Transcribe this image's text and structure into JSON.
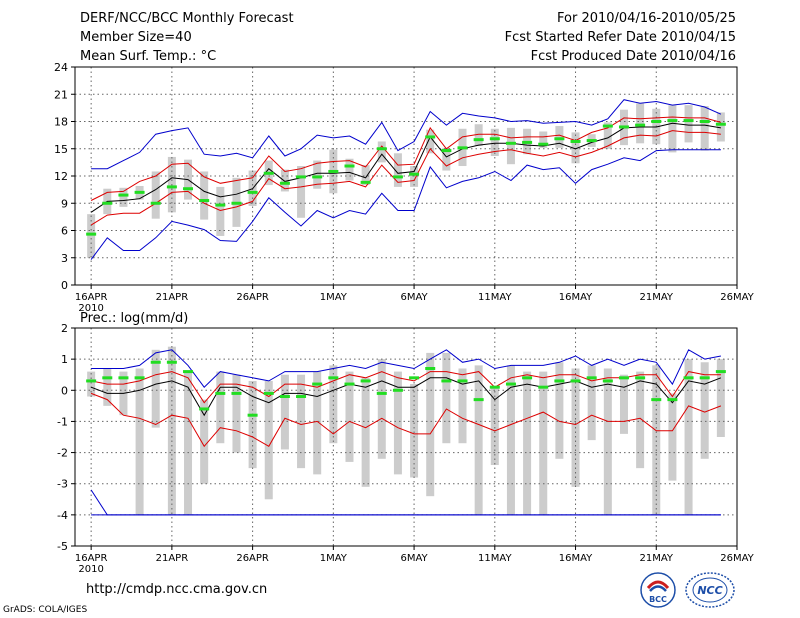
{
  "header": {
    "title": "DERF/NCC/BCC Monthly Forecast",
    "member_size": "Member Size=40",
    "variable1": "Mean Surf. Temp.: °C",
    "period": "For 2010/04/16-2010/05/25",
    "refer_date": "Fcst Started Refer Date 2010/04/15",
    "produced_date": "Fcst Produced Date 2010/04/16"
  },
  "footer": {
    "url": "http://cmdp.ncc.cma.gov.cn",
    "credit": "GrADS: COLA/IGES",
    "logo_bcc": "BCC",
    "logo_ncc": "NCC"
  },
  "colors": {
    "envelope": "#0000cc",
    "spread": "#dd0000",
    "mean": "#000000",
    "obs": "#22dd22",
    "box": "#cccccc"
  },
  "chart_data": [
    {
      "type": "line",
      "title": "Mean Surf. Temp.: °C",
      "x": [
        1,
        2,
        3,
        4,
        5,
        6,
        7,
        8,
        9,
        10,
        11,
        12,
        13,
        14,
        15,
        16,
        17,
        18,
        19,
        20,
        21,
        22,
        23,
        24,
        25,
        26,
        27,
        28,
        29,
        30,
        31,
        32,
        33,
        34,
        35,
        36,
        37,
        38,
        39,
        40
      ],
      "xlim": [
        0,
        41
      ],
      "ylim": [
        0,
        24
      ],
      "yticks": [
        0,
        3,
        6,
        9,
        12,
        15,
        18,
        21,
        24
      ],
      "xtick_positions": [
        1,
        6,
        11,
        16,
        21,
        26,
        31,
        36,
        41
      ],
      "xtick_labels": [
        "16APR",
        "21APR",
        "26APR",
        "1MAY",
        "6MAY",
        "11MAY",
        "16MAY",
        "21MAY",
        "26MAY"
      ],
      "year_label": "2010",
      "series": [
        {
          "name": "max",
          "values": [
            2.8,
            5.2,
            3.8,
            3.8,
            5.2,
            7,
            6.6,
            6.1,
            4.9,
            4.8,
            7,
            9.6,
            8,
            6.5,
            8.2,
            7.4,
            8.2,
            7.8,
            10.1,
            8.2,
            8.2,
            13,
            10.7,
            11.4,
            11.8,
            12.5,
            11.5,
            13.2,
            12.7,
            12.9,
            11.2,
            12.7,
            13.3,
            14,
            13.7,
            14.8,
            14.9,
            14.9,
            14.9,
            14.9
          ]
        },
        {
          "name": "min",
          "values": [
            12.8,
            12.8,
            13.7,
            14.6,
            16.6,
            17,
            17.3,
            14.4,
            14.2,
            14.5,
            14,
            16.4,
            14.2,
            15,
            16.5,
            16.2,
            16.4,
            15.5,
            17.9,
            14.8,
            15.8,
            19.1,
            17.6,
            18.9,
            18.6,
            18.4,
            18,
            18.1,
            17.8,
            17.9,
            18,
            17.6,
            18.3,
            20.4,
            20,
            20.2,
            19.8,
            20,
            19.6,
            18.8
          ]
        },
        {
          "name": "upper",
          "values": [
            9.3,
            10.2,
            10.3,
            11.4,
            12,
            13.3,
            13.4,
            11.9,
            11.2,
            11.5,
            11.8,
            14.2,
            12.5,
            12.8,
            13.4,
            13.6,
            13.7,
            13,
            15.3,
            13.2,
            13.3,
            17.3,
            15,
            16.3,
            16.6,
            16.6,
            16.2,
            16.3,
            16.3,
            16.5,
            15.9,
            16.8,
            17.3,
            18.4,
            18.3,
            18.4,
            18.5,
            18.4,
            18.4,
            17.9
          ]
        },
        {
          "name": "mean",
          "values": [
            8,
            9.2,
            9.3,
            9.5,
            10.5,
            11.8,
            11.6,
            10.3,
            9.7,
            10,
            10.6,
            12.8,
            11.4,
            11.8,
            12.3,
            12.3,
            12.4,
            11.8,
            14.4,
            12.3,
            12.5,
            16.3,
            14.1,
            15,
            15.4,
            15.6,
            15.6,
            15.4,
            15.3,
            15.6,
            15,
            15.7,
            16.2,
            17.3,
            17.4,
            17.4,
            17.8,
            17.6,
            17.6,
            17.3
          ]
        },
        {
          "name": "lower",
          "values": [
            6.6,
            7.7,
            7.9,
            7.9,
            9,
            10.2,
            10.3,
            9,
            8.2,
            8.6,
            9.2,
            11.7,
            10.6,
            10.8,
            11.1,
            11.2,
            11.4,
            10.8,
            13.2,
            11.3,
            11.5,
            15,
            13.1,
            14,
            14.4,
            14.7,
            14.9,
            14.5,
            14.2,
            14.6,
            14.1,
            14.6,
            15.3,
            16.2,
            16.5,
            16.4,
            17,
            16.8,
            16.8,
            16.6
          ]
        }
      ],
      "box_low": [
        3,
        7.8,
        8.6,
        9.4,
        7.3,
        8,
        9.4,
        7.2,
        5.4,
        6.4,
        8.7,
        11,
        10.3,
        7.4,
        10.6,
        10.1,
        11.5,
        11,
        13.5,
        10.8,
        10.8,
        14.5,
        12.6,
        13.1,
        15.3,
        14.2,
        13.3,
        14.4,
        15.1,
        15.1,
        13.4,
        15.2,
        15,
        15.4,
        15.6,
        15.5,
        14.6,
        15.7,
        14.8,
        15.8
      ],
      "box_high": [
        7.8,
        10.6,
        10.7,
        10.9,
        12.5,
        14.1,
        13.8,
        12.5,
        10.8,
        11.8,
        12.6,
        13.7,
        12.7,
        13.1,
        13.7,
        14.9,
        13.9,
        13.2,
        15.8,
        14.5,
        13.1,
        17.1,
        15.1,
        17.2,
        17.7,
        17.2,
        17.3,
        17.2,
        16.9,
        17.5,
        16.8,
        16.6,
        17.9,
        19.3,
        20,
        19.4,
        19.8,
        19.8,
        19.7,
        19
      ],
      "obs": [
        5.6,
        9,
        9.9,
        10.2,
        9,
        10.8,
        10.6,
        9.3,
        8.8,
        9,
        10.2,
        12.3,
        11.2,
        11.9,
        11.9,
        12.5,
        13.1,
        11.3,
        15,
        11.9,
        12.2,
        16.3,
        14.8,
        15.1,
        16,
        16.1,
        15.6,
        15.7,
        15.5,
        16.1,
        15.8,
        15.9,
        17.5,
        17.4,
        17.6,
        18,
        18.1,
        18.1,
        18,
        17.7
      ]
    },
    {
      "type": "line",
      "title": "Prec.: log(mm/d)",
      "x": [
        1,
        2,
        3,
        4,
        5,
        6,
        7,
        8,
        9,
        10,
        11,
        12,
        13,
        14,
        15,
        16,
        17,
        18,
        19,
        20,
        21,
        22,
        23,
        24,
        25,
        26,
        27,
        28,
        29,
        30,
        31,
        32,
        33,
        34,
        35,
        36,
        37,
        38,
        39,
        40
      ],
      "xlim": [
        0,
        41
      ],
      "ylim": [
        -5,
        2
      ],
      "yticks": [
        -5,
        -4,
        -3,
        -2,
        -1,
        0,
        1,
        2
      ],
      "xtick_positions": [
        1,
        6,
        11,
        16,
        21,
        26,
        31,
        36,
        41
      ],
      "xtick_labels": [
        "16APR",
        "21APR",
        "26APR",
        "1MAY",
        "6MAY",
        "11MAY",
        "16MAY",
        "21MAY",
        "26MAY"
      ],
      "year_label": "2010",
      "series": [
        {
          "name": "max",
          "values": [
            0.7,
            0.7,
            0.7,
            0.8,
            1.2,
            1.3,
            0.8,
            0.1,
            0.6,
            0.5,
            0.4,
            0.3,
            0.6,
            0.6,
            0.6,
            0.7,
            0.8,
            0.7,
            0.9,
            0.8,
            0.7,
            1,
            1.3,
            0.9,
            1,
            0.7,
            0.8,
            0.8,
            0.8,
            0.9,
            1.1,
            0.8,
            1,
            0.8,
            1,
            0.9,
            0.2,
            1.3,
            1,
            1.1
          ]
        },
        {
          "name": "min",
          "values": [
            -3.2,
            -4,
            -4,
            -4,
            -4,
            -4,
            -4,
            -4,
            -4,
            -4,
            -4,
            -4,
            -4,
            -4,
            -4,
            -4,
            -4,
            -4,
            -4,
            -4,
            -4,
            -4,
            -4,
            -4,
            -4,
            -4,
            -4,
            -4,
            -4,
            -4,
            -4,
            -4,
            -4,
            -4,
            -4,
            -4,
            -4,
            -4,
            -4,
            -4
          ]
        },
        {
          "name": "upper",
          "values": [
            0.3,
            0.2,
            0.2,
            0.3,
            0.5,
            0.6,
            0.4,
            -0.4,
            0.2,
            0.2,
            0.1,
            -0.2,
            0.2,
            0.2,
            0.1,
            0.3,
            0.5,
            0.4,
            0.6,
            0.4,
            0.3,
            0.6,
            0.6,
            0.5,
            0.6,
            0.1,
            0.4,
            0.5,
            0.4,
            0.5,
            0.5,
            0.3,
            0.4,
            0.4,
            0.5,
            0.5,
            -0.2,
            0.6,
            0.5,
            0.5
          ]
        },
        {
          "name": "mean",
          "values": [
            0.1,
            -0.1,
            -0.1,
            0,
            0.2,
            0.3,
            0.1,
            -0.8,
            0.1,
            0.1,
            -0.2,
            -0.4,
            -0.1,
            -0.1,
            -0.2,
            0,
            0.2,
            0.1,
            0.3,
            0.1,
            0.1,
            0.4,
            0.4,
            0.2,
            0.3,
            -0.3,
            0.1,
            0.2,
            0.1,
            0.2,
            0.3,
            0.1,
            0.2,
            0.1,
            0.3,
            0.2,
            -0.4,
            0.3,
            0.2,
            0.4
          ]
        },
        {
          "name": "lower",
          "values": [
            -0.1,
            -0.3,
            -0.8,
            -0.9,
            -1.1,
            -0.8,
            -0.9,
            -1.8,
            -1.2,
            -1.3,
            -1.5,
            -1.8,
            -0.9,
            -1.1,
            -1,
            -1.4,
            -1,
            -1.2,
            -0.9,
            -1.2,
            -1.4,
            -1.4,
            -0.6,
            -0.9,
            -1.1,
            -1.3,
            -1.1,
            -0.9,
            -0.7,
            -1,
            -1.1,
            -0.8,
            -1,
            -1,
            -0.9,
            -1.3,
            -1.3,
            -0.5,
            -0.7,
            -0.5
          ]
        },
        {
          "name": "bottom",
          "values": [
            -4,
            -4,
            -4,
            -4,
            -4,
            -4,
            -4,
            -4,
            -4,
            -4,
            -4,
            -4,
            -4,
            -4,
            -4,
            -4,
            -4,
            -4,
            -4,
            -4,
            -4,
            -4,
            -4,
            -4,
            -4,
            -4,
            -4,
            -4,
            -4,
            -4,
            -4,
            -4,
            -4,
            -4,
            -4,
            -4,
            -4,
            -4,
            -4,
            -4
          ]
        }
      ],
      "box_low": [
        -0.2,
        -0.5,
        -0.8,
        -4,
        -1.2,
        -4,
        -4,
        -3,
        -1.7,
        -2,
        -2.5,
        -3.5,
        -1.9,
        -2.5,
        -2.7,
        -1.7,
        -2.3,
        -3.1,
        -2.2,
        -2.7,
        -2.8,
        -3.4,
        -1.7,
        -1.7,
        -4,
        -2.4,
        -4,
        -4,
        -4,
        -2.2,
        -3.1,
        -1.6,
        -4,
        -1.4,
        -2.5,
        -4,
        -2.9,
        -4,
        -2.2,
        -1.5
      ],
      "box_high": [
        0.6,
        0.7,
        0.6,
        0.7,
        1.3,
        1.4,
        0.6,
        -0.3,
        0.6,
        0.5,
        0.3,
        0.3,
        0.5,
        0.5,
        0.6,
        0.8,
        0.6,
        0.4,
        1,
        0.6,
        0.2,
        1.2,
        1.2,
        0.7,
        0.8,
        0.1,
        0.8,
        0.6,
        0.6,
        0.9,
        0.7,
        0.8,
        0.7,
        0.5,
        0.6,
        0.8,
        -0.1,
        1,
        0.9,
        1
      ],
      "obs": [
        0.3,
        0.4,
        0.4,
        0.4,
        0.9,
        0.9,
        0.6,
        -0.6,
        -0.1,
        -0.1,
        -0.8,
        -0.1,
        -0.2,
        -0.2,
        0.2,
        0.4,
        0.2,
        0.3,
        -0.1,
        0,
        0.4,
        0.7,
        0.3,
        0.3,
        -0.3,
        0.1,
        0.2,
        0.4,
        0.1,
        0.3,
        0.3,
        0.4,
        0.3,
        0.4,
        0.4,
        -0.3,
        -0.3,
        0.4,
        0.4,
        0.6
      ]
    }
  ]
}
